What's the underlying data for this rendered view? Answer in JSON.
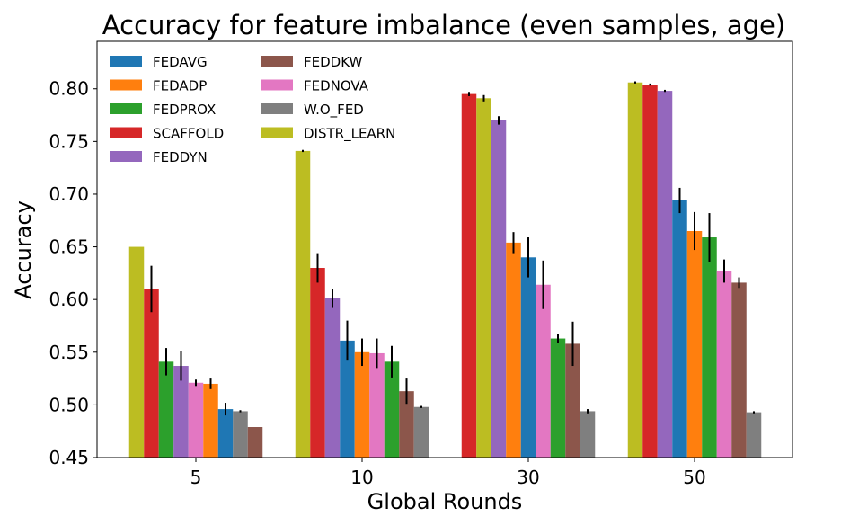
{
  "chart_data": {
    "type": "bar",
    "title": "Accuracy for feature imbalance (even samples, age)",
    "xlabel": "Global Rounds",
    "ylabel": "Accuracy",
    "ylim": [
      0.45,
      0.845
    ],
    "yticks": [
      "0.45",
      "0.50",
      "0.55",
      "0.60",
      "0.65",
      "0.70",
      "0.75",
      "0.80"
    ],
    "categories": [
      "5",
      "10",
      "30",
      "50"
    ],
    "legend_position": "top-left",
    "legend_columns": 2,
    "bars_sorted_descending_within_group": true,
    "series": [
      {
        "name": "FEDAVG",
        "color": "#1f77b4",
        "values": [
          0.496,
          0.561,
          0.64,
          0.694
        ],
        "errors": [
          0.006,
          0.019,
          0.019,
          0.012
        ]
      },
      {
        "name": "FEDADP",
        "color": "#ff7f0e",
        "values": [
          0.52,
          0.55,
          0.654,
          0.665
        ],
        "errors": [
          0.005,
          0.013,
          0.01,
          0.018
        ]
      },
      {
        "name": "FEDPROX",
        "color": "#2ca02c",
        "values": [
          0.541,
          0.541,
          0.563,
          0.659
        ],
        "errors": [
          0.013,
          0.015,
          0.004,
          0.023
        ]
      },
      {
        "name": "SCAFFOLD",
        "color": "#d62728",
        "values": [
          0.61,
          0.63,
          0.795,
          0.804
        ],
        "errors": [
          0.022,
          0.014,
          0.002,
          0.001
        ]
      },
      {
        "name": "FEDDYN",
        "color": "#9467bd",
        "values": [
          0.537,
          0.601,
          0.77,
          0.798
        ],
        "errors": [
          0.014,
          0.009,
          0.004,
          0.001
        ]
      },
      {
        "name": "FEDDKW",
        "color": "#8c564b",
        "values": [
          0.479,
          0.513,
          0.558,
          0.616
        ],
        "errors": [
          0.0,
          0.012,
          0.021,
          0.005
        ]
      },
      {
        "name": "FEDNOVA",
        "color": "#e377c2",
        "values": [
          0.521,
          0.549,
          0.614,
          0.627
        ],
        "errors": [
          0.003,
          0.014,
          0.023,
          0.011
        ]
      },
      {
        "name": "W.O_FED",
        "color": "#7f7f7f",
        "values": [
          0.494,
          0.498,
          0.494,
          0.493
        ],
        "errors": [
          0.001,
          0.001,
          0.002,
          0.001
        ]
      },
      {
        "name": "DISTR_LEARN",
        "color": "#bcbd22",
        "values": [
          0.65,
          0.741,
          0.791,
          0.806
        ],
        "errors": [
          0.0,
          0.001,
          0.003,
          0.001
        ]
      }
    ]
  }
}
